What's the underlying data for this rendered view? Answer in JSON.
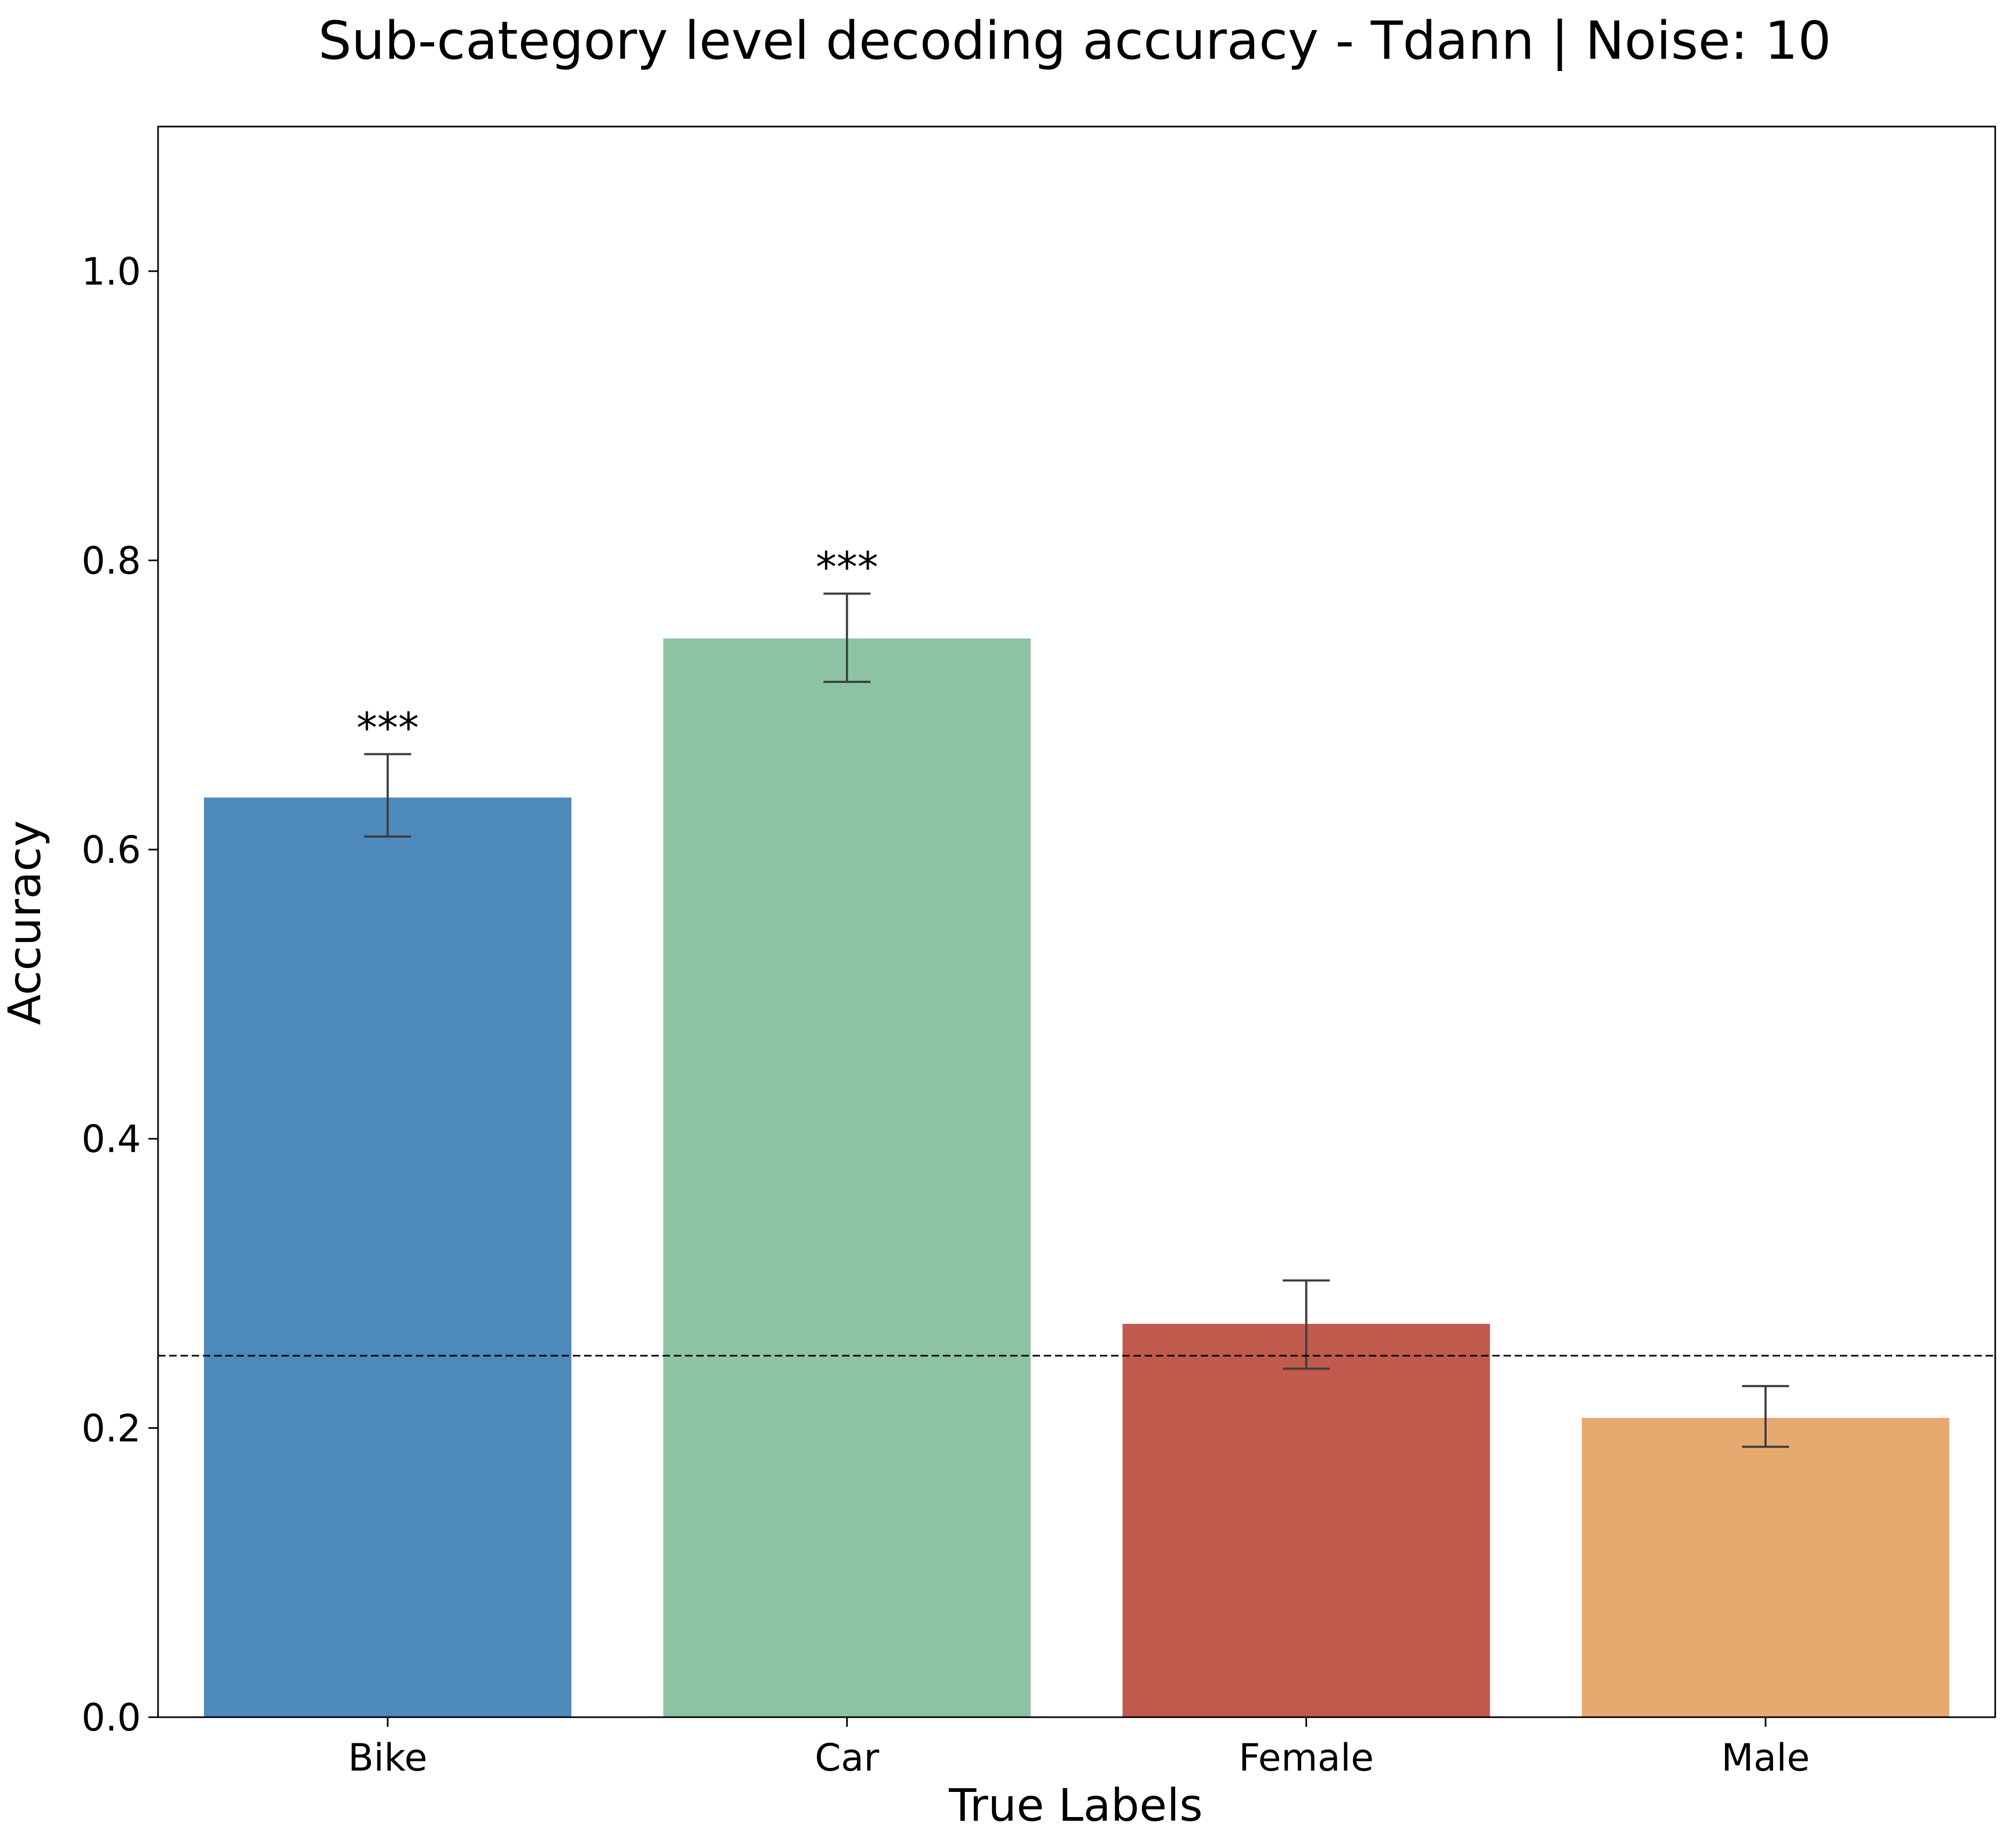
{
  "chart_data": {
    "type": "bar",
    "title": "Sub-category level decoding accuracy - Tdann | Noise: 10",
    "xlabel": "True Labels",
    "ylabel": "Accuracy",
    "categories": [
      "Bike",
      "Car",
      "Female",
      "Male"
    ],
    "values": [
      0.636,
      0.746,
      0.272,
      0.207
    ],
    "error_low": [
      0.609,
      0.716,
      0.241,
      0.187
    ],
    "error_high": [
      0.666,
      0.777,
      0.302,
      0.229
    ],
    "significance": [
      "***",
      "***",
      "",
      ""
    ],
    "colors": [
      "#4e89bc",
      "#8cc4a3",
      "#c05a4c",
      "#e6aa70"
    ],
    "chance_level": 0.25,
    "ylim": [
      0,
      1.1
    ],
    "yticks": [
      0.0,
      0.2,
      0.4,
      0.6,
      0.8,
      1.0
    ],
    "ytick_labels": [
      "0.0",
      "0.2",
      "0.4",
      "0.6",
      "0.8",
      "1.0"
    ],
    "grid": false,
    "legend": "none"
  }
}
